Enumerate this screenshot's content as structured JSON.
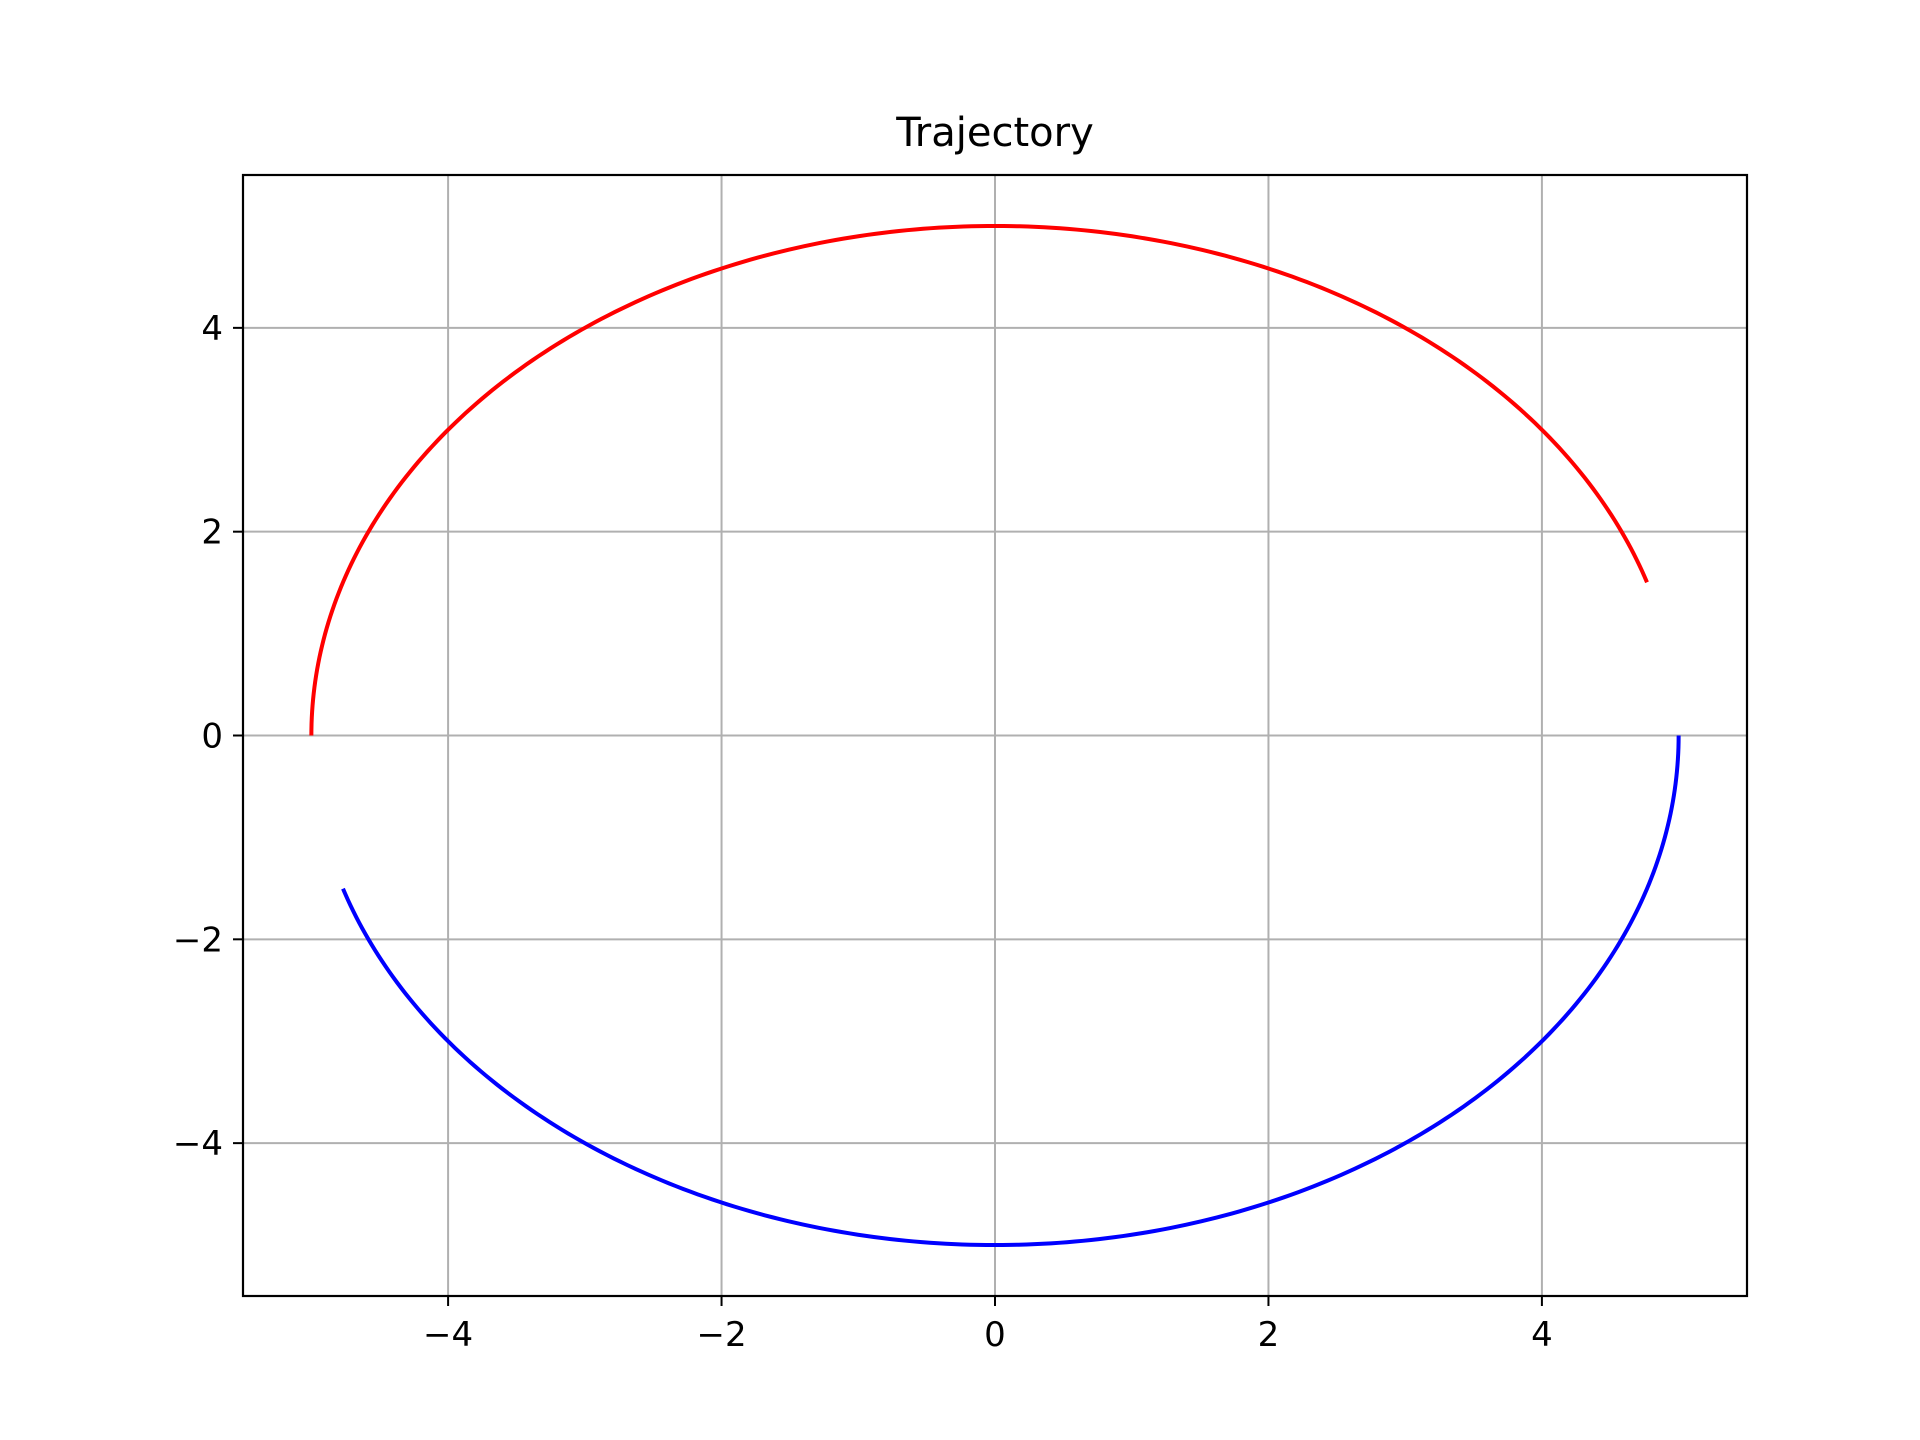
{
  "chart_data": {
    "type": "line",
    "title": "Trajectory",
    "xlabel": "",
    "ylabel": "",
    "xlim": [
      -5.5,
      5.5
    ],
    "ylim": [
      -5.5,
      5.5
    ],
    "grid": true,
    "x_ticks": [
      -4,
      -2,
      0,
      2,
      4
    ],
    "y_ticks": [
      -4,
      -2,
      0,
      2,
      4
    ],
    "x_tick_labels": [
      "−4",
      "−2",
      "0",
      "2",
      "4"
    ],
    "y_tick_labels": [
      "−4",
      "−2",
      "0",
      "2",
      "4"
    ],
    "series": [
      {
        "color": "#ff0000",
        "shape": "ellipse-arc",
        "center": [
          0,
          0
        ],
        "radius": 5,
        "angle_start_deg": 180,
        "angle_end_deg": 17.5
      },
      {
        "color": "#0000ff",
        "shape": "ellipse-arc",
        "center": [
          0,
          0
        ],
        "radius": 5,
        "angle_start_deg": 360,
        "angle_end_deg": 197.5
      }
    ]
  }
}
